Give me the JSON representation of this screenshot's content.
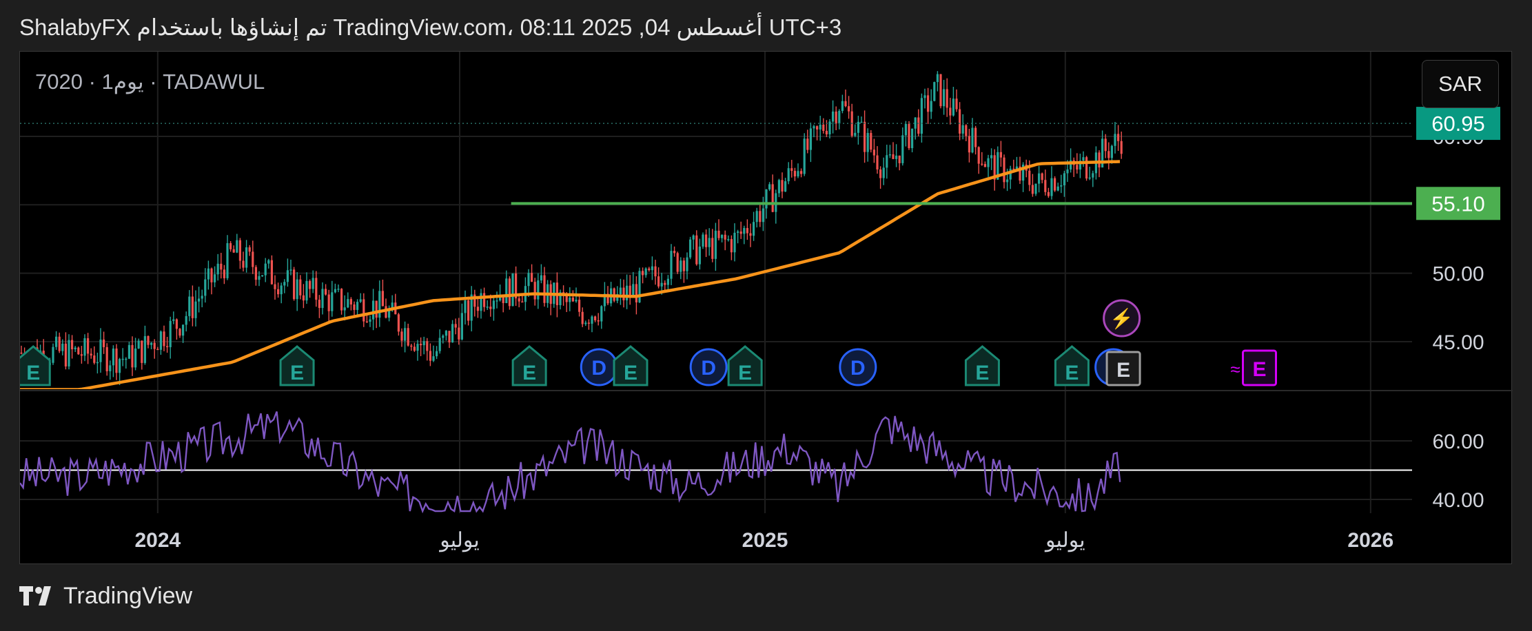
{
  "header": {
    "text": "ShalabyFX تم إنشاؤها باستخدام TradingView.com، 08:11 2025 ,04 أغسطس UTC+3"
  },
  "symbol": {
    "text": "7020 · 1يوم · TADAWUL"
  },
  "currency": "SAR",
  "footer": {
    "brand": "TradingView"
  },
  "colors": {
    "background": "#000000",
    "up": "#26a69a",
    "down": "#ef5350",
    "ma": "#f7931a",
    "support": "#4caf50",
    "rsi": "#7e57c2",
    "last_price_badge": "#089981",
    "grid": "#1f1f1f"
  },
  "chart_data": [
    {
      "type": "line",
      "title": "",
      "series": [
        {
          "kind": "candlestick-close",
          "x": [
            "2023-11",
            "2023-12",
            "2024-01",
            "2024-02",
            "2024-03",
            "2024-04",
            "2024-05",
            "2024-06",
            "2024-07",
            "2024-08",
            "2024-09",
            "2024-10",
            "2024-11",
            "2024-12",
            "2025-01",
            "2025-02",
            "2025-03",
            "2025-04",
            "2025-05",
            "2025-06",
            "2025-07",
            "2025-08"
          ],
          "values": [
            44.2,
            43.8,
            46.5,
            51.5,
            49.5,
            48.0,
            47.5,
            44.0,
            48.5,
            49.0,
            47.0,
            48.8,
            51.5,
            52.5,
            57.0,
            62.5,
            57.5,
            63.5,
            58.0,
            56.5,
            58.0,
            60.95
          ]
        },
        {
          "kind": "moving-average",
          "x": [
            "2023-11",
            "2024-02",
            "2024-04",
            "2024-06",
            "2024-08",
            "2024-10",
            "2024-12",
            "2025-02",
            "2025-04",
            "2025-06",
            "2025-08"
          ],
          "values": [
            41.5,
            43.5,
            46.5,
            48.0,
            48.5,
            48.3,
            49.6,
            51.5,
            55.8,
            58.0,
            58.2
          ]
        }
      ],
      "horizontal_line": 55.1,
      "price_labels": [
        "60.95",
        "55.10"
      ],
      "y_ticks": [
        "45.00",
        "50.00",
        "60.00"
      ],
      "x_ticks": [
        "2024",
        "يوليو",
        "2025",
        "يوليو",
        "2026"
      ],
      "events": {
        "earnings": [
          "E",
          "E",
          "E",
          "E",
          "E",
          "E",
          "E",
          "E"
        ],
        "dividends": [
          "D",
          "D",
          "D",
          "D"
        ],
        "future_earnings": "E",
        "lightning": "⚡"
      },
      "ylim": [
        43.0,
        63.5
      ],
      "grid": true
    },
    {
      "type": "line",
      "title": "",
      "series": [
        {
          "kind": "rsi",
          "x": [
            "2023-11",
            "2024-01",
            "2024-03",
            "2024-05",
            "2024-07",
            "2024-09",
            "2024-11",
            "2025-01",
            "2025-02",
            "2025-03",
            "2025-05",
            "2025-07",
            "2025-08"
          ],
          "values": [
            48,
            56,
            66,
            44,
            38,
            59,
            45,
            58,
            44,
            66,
            48,
            40,
            60
          ]
        }
      ],
      "reference_line": 50,
      "y_ticks": [
        "60.00",
        "40.00"
      ],
      "ylim": [
        35,
        70
      ],
      "grid": true
    }
  ]
}
